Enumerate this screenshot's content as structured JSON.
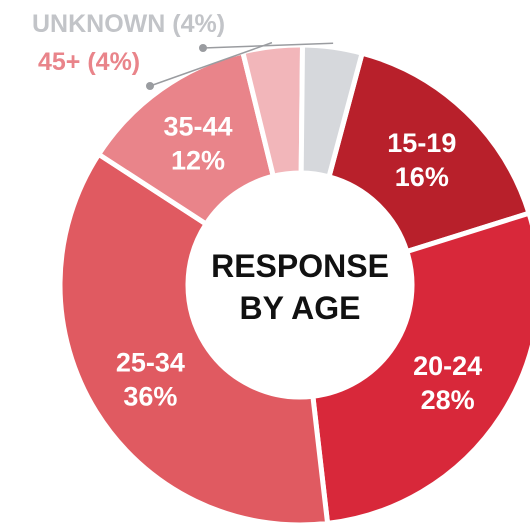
{
  "chart_data": {
    "type": "pie",
    "center_label_lines": [
      "RESPONSE",
      "BY AGE"
    ],
    "slices": [
      {
        "category": "15-19",
        "value": 16,
        "value_label": "16%",
        "color": "#b8202b"
      },
      {
        "category": "20-24",
        "value": 28,
        "value_label": "28%",
        "color": "#d8283a"
      },
      {
        "category": "25-34",
        "value": 36,
        "value_label": "36%",
        "color": "#e05a61"
      },
      {
        "category": "35-44",
        "value": 12,
        "value_label": "12%",
        "color": "#e9848a"
      },
      {
        "category": "45+",
        "value": 4,
        "value_label": "45+ (4%)",
        "color": "#f2b6ba"
      },
      {
        "category": "UNKNOWN",
        "value": 4,
        "value_label": "UNKNOWN (4%)",
        "color": "#d6d8dc"
      }
    ],
    "colors": {
      "outside_label_45_plus": "#e9848a",
      "outside_label_unknown": "#c2c4c8",
      "inner_text": "#ffffff",
      "center_text": "#111111"
    }
  }
}
